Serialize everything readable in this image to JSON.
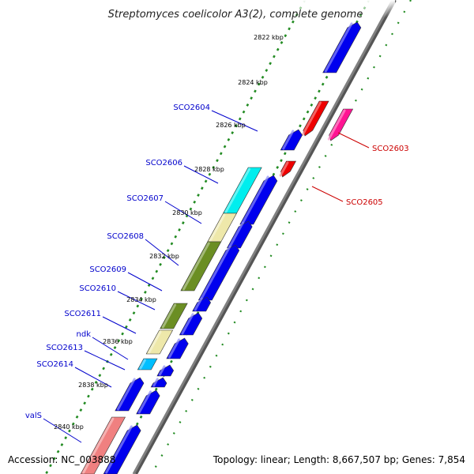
{
  "title": "Streptomyces coelicolor A3(2), complete genome",
  "footer": {
    "accession": "Accession: NC_003888",
    "topology": "Topology: linear; Length: 8,667,507 bp; Genes: 7,854"
  },
  "colors": {
    "backbone": "#808080",
    "tick": "#228b22",
    "label_left": "#0000cc",
    "label_right": "#cc0000"
  },
  "scale_labels": [
    "2822 kbp",
    "2824 kbp",
    "2826 kbp",
    "2828 kbp",
    "2830 kbp",
    "2832 kbp",
    "2834 kbp",
    "2836 kbp",
    "2838 kbp",
    "2840 kbp"
  ],
  "genes": [
    {
      "name": "",
      "color": "#0000ee"
    },
    {
      "name": "SCO2603",
      "color": "#ff1493"
    },
    {
      "name": "",
      "color": "#ee0000"
    },
    {
      "name": "SCO2604",
      "color": "#0000ee"
    },
    {
      "name": "SCO2605",
      "color": "#ee0000"
    },
    {
      "name": "SCO2606",
      "color": "#00eeee"
    },
    {
      "name": "",
      "color": "#0000ee"
    },
    {
      "name": "SCO2607",
      "color": "#eee8aa"
    },
    {
      "name": "",
      "color": "#0000ee"
    },
    {
      "name": "SCO2608",
      "color": "#6b8e23"
    },
    {
      "name": "",
      "color": "#0000ee"
    },
    {
      "name": "SCO2609",
      "color": "#0000ee"
    },
    {
      "name": "SCO2610",
      "color": "#6b8e23"
    },
    {
      "name": "",
      "color": "#0000ee"
    },
    {
      "name": "SCO2611",
      "color": "#eee8aa"
    },
    {
      "name": "",
      "color": "#0000ee"
    },
    {
      "name": "ndk",
      "color": "#00bfff"
    },
    {
      "name": "SCO2613",
      "color": "#0000ee"
    },
    {
      "name": "SCO2614",
      "color": "#0000ee"
    },
    {
      "name": "",
      "color": "#0000ee"
    },
    {
      "name": "",
      "color": "#0000ee"
    },
    {
      "name": "valS",
      "color": "#f08080"
    },
    {
      "name": "",
      "color": "#0000ee"
    }
  ]
}
